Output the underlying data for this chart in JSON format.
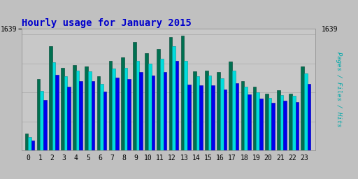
{
  "title": "Hourly usage for January 2015",
  "ylabel_right": "Pages / Files / Hits",
  "ytick_label": "1639",
  "hours": [
    0,
    1,
    2,
    3,
    4,
    5,
    6,
    7,
    8,
    9,
    10,
    11,
    12,
    13,
    14,
    15,
    16,
    17,
    18,
    19,
    20,
    21,
    22,
    23
  ],
  "pages": [
    115,
    490,
    720,
    570,
    590,
    580,
    510,
    620,
    640,
    750,
    670,
    700,
    780,
    790,
    545,
    550,
    540,
    615,
    480,
    440,
    390,
    415,
    390,
    580
  ],
  "files": [
    90,
    410,
    610,
    510,
    550,
    545,
    460,
    565,
    570,
    620,
    600,
    630,
    720,
    620,
    510,
    515,
    495,
    550,
    440,
    400,
    360,
    380,
    375,
    530
  ],
  "hits": [
    70,
    350,
    520,
    440,
    480,
    480,
    405,
    500,
    490,
    540,
    515,
    540,
    620,
    455,
    450,
    450,
    420,
    465,
    385,
    355,
    330,
    345,
    335,
    460
  ],
  "color_pages": "#007050",
  "color_files": "#00dddd",
  "color_hits": "#0000ee",
  "background_color": "#c0c0c0",
  "plot_bg_color": "#c8c8c8",
  "title_color": "#0000cc",
  "ylabel_color": "#00aaaa",
  "ylim_max": 840,
  "ytick_pos": 840,
  "title_fontsize": 10,
  "tick_fontsize": 7
}
